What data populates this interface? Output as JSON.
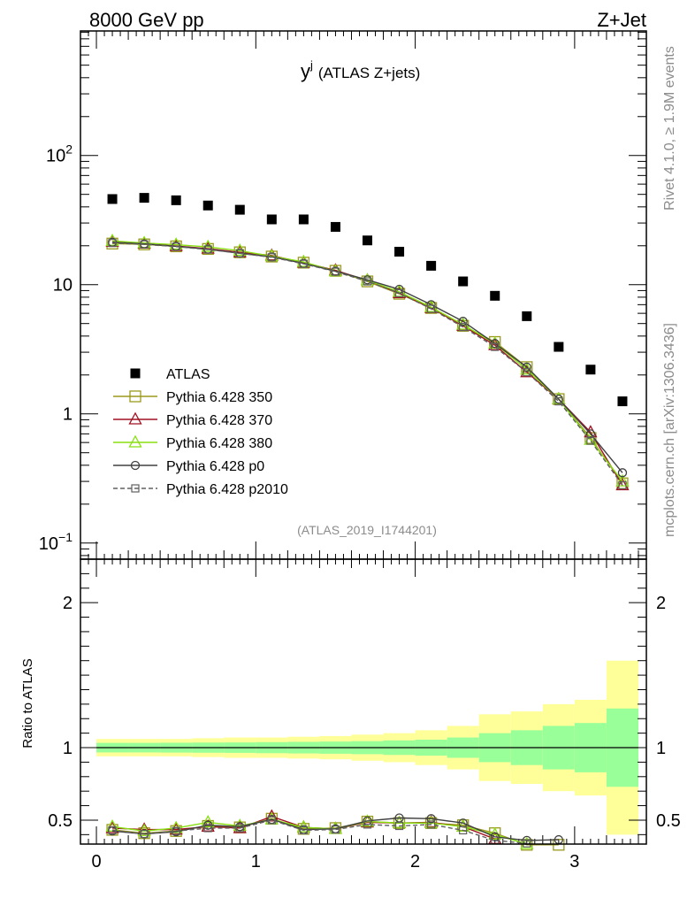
{
  "header": {
    "left": "8000 GeV pp",
    "right": "Z+Jet"
  },
  "title": {
    "symbol": "y",
    "superscript": "j",
    "subtitle": "(ATLAS Z+jets)"
  },
  "side_labels": {
    "rivet": "Rivet 4.1.0, ≥ 1.9M events",
    "mcplots": "mcplots.cern.ch [arXiv:1306.3436]"
  },
  "analysis_id": "(ATLAS_2019_I1744201)",
  "ratio_ylabel": "Ratio to ATLAS",
  "colors": {
    "atlas": "#000000",
    "p350": "#9a9a1e",
    "p370": "#a01020",
    "p380": "#88e010",
    "p0": "#404040",
    "p2010": "#606060",
    "band_inner": "#99ff99",
    "band_outer": "#ffff99"
  },
  "chart_data": {
    "type": "scatter",
    "x": [
      0.1,
      0.3,
      0.5,
      0.7,
      0.9,
      1.1,
      1.3,
      1.5,
      1.7,
      1.9,
      2.1,
      2.3,
      2.5,
      2.7,
      2.9,
      3.1,
      3.3
    ],
    "xlim": [
      -0.1,
      3.45
    ],
    "x_ticks": [
      0,
      1,
      2,
      3
    ],
    "main": {
      "yscale": "log",
      "ylim": [
        0.075,
        920
      ],
      "y_ticks": [
        {
          "value": 0.1,
          "base": "10",
          "exp": "−1"
        },
        {
          "value": 1,
          "base": "1",
          "exp": ""
        },
        {
          "value": 10,
          "base": "10",
          "exp": ""
        },
        {
          "value": 100,
          "base": "10",
          "exp": "2"
        }
      ]
    },
    "ratio": {
      "ylim": [
        0.335,
        2.3
      ],
      "y_ticks": [
        "0.5",
        "1",
        "2"
      ],
      "band_inner": [
        0.033,
        0.033,
        0.034,
        0.035,
        0.036,
        0.038,
        0.04,
        0.042,
        0.045,
        0.05,
        0.055,
        0.07,
        0.1,
        0.12,
        0.15,
        0.17,
        0.27
      ],
      "band_outer": [
        0.06,
        0.06,
        0.06,
        0.065,
        0.07,
        0.07,
        0.075,
        0.08,
        0.09,
        0.1,
        0.12,
        0.15,
        0.23,
        0.25,
        0.3,
        0.33,
        0.6
      ]
    },
    "series": [
      {
        "name": "ATLAS",
        "marker": "filled-square",
        "style": "none",
        "values": [
          46,
          47,
          45,
          41,
          38,
          32,
          32,
          28,
          22,
          18,
          14,
          10.6,
          8.2,
          5.7,
          3.3,
          2.2,
          1.25
        ]
      },
      {
        "name": "Pythia 6.428 350",
        "marker": "open-square",
        "style": "solid",
        "color": "p350",
        "values": [
          20.8,
          20.5,
          19.8,
          18.9,
          17.8,
          16.5,
          14.8,
          12.8,
          10.6,
          8.5,
          6.6,
          4.8,
          3.6,
          2.3,
          1.3,
          0.65,
          0.29
        ],
        "ratio": [
          0.433,
          0.41,
          0.425,
          0.46,
          0.45,
          0.51,
          0.44,
          0.445,
          0.49,
          0.48,
          0.48,
          0.465,
          0.41,
          0.33,
          0.33
        ]
      },
      {
        "name": "Pythia 6.428 370",
        "marker": "open-triangle",
        "style": "solid",
        "color": "p370",
        "values": [
          21.5,
          20.8,
          19.9,
          19.0,
          17.8,
          16.8,
          14.8,
          12.9,
          10.8,
          8.6,
          6.6,
          4.8,
          3.4,
          2.1,
          1.3,
          0.72,
          0.28
        ],
        "ratio": [
          0.445,
          0.435,
          0.435,
          0.455,
          0.445,
          0.525,
          0.45,
          0.44,
          0.485,
          0.48,
          0.485,
          0.455,
          0.37
        ]
      },
      {
        "name": "Pythia 6.428 380",
        "marker": "open-triangle",
        "style": "solid",
        "color": "p380",
        "values": [
          21.8,
          21.0,
          20.4,
          19.6,
          18.3,
          16.6,
          15.0,
          12.7,
          10.8,
          8.8,
          6.7,
          4.9,
          3.5,
          2.2,
          1.3,
          0.63,
          0.3
        ],
        "ratio": [
          0.455,
          0.425,
          0.445,
          0.485,
          0.46,
          0.505,
          0.45,
          0.44,
          0.49,
          0.48,
          0.48,
          0.455,
          0.4,
          0.335
        ]
      },
      {
        "name": "Pythia 6.428 p0",
        "marker": "open-circle",
        "style": "solid",
        "color": "p0",
        "values": [
          21.3,
          20.7,
          19.8,
          18.8,
          17.5,
          16.4,
          14.6,
          12.7,
          10.9,
          9.2,
          7.0,
          5.2,
          3.5,
          2.3,
          1.3,
          0.7,
          0.35
        ],
        "ratio": [
          0.425,
          0.405,
          0.42,
          0.465,
          0.455,
          0.505,
          0.435,
          0.44,
          0.495,
          0.515,
          0.51,
          0.48,
          0.385,
          0.36,
          0.365
        ]
      },
      {
        "name": "Pythia 6.428 p2010",
        "marker": "open-square-small",
        "style": "dashed",
        "color": "p2010",
        "values": [
          21.0,
          20.5,
          19.7,
          18.7,
          17.5,
          16.3,
          14.5,
          12.6,
          10.6,
          8.6,
          6.5,
          4.7,
          3.3,
          2.1,
          1.25,
          0.62,
          0.28
        ],
        "ratio": [
          0.43,
          0.405,
          0.425,
          0.445,
          0.445,
          0.5,
          0.43,
          0.435,
          0.47,
          0.46,
          0.47,
          0.43,
          0.36,
          0.34
        ]
      }
    ]
  }
}
